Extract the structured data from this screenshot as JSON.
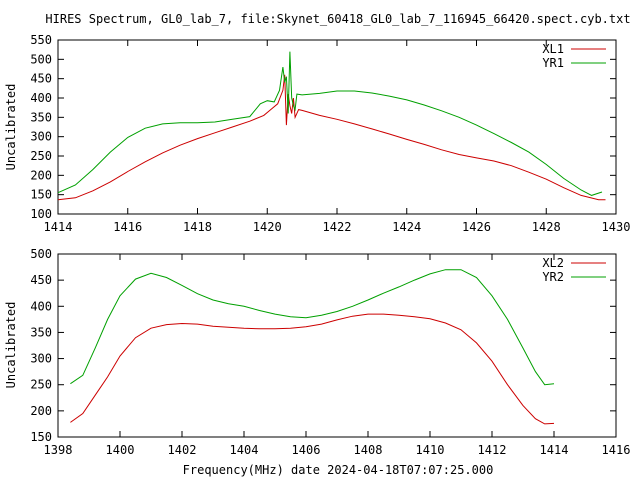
{
  "title": "HIRES Spectrum, GL0_lab_7, file:Skynet_60418_GL0_lab_7_116945_66420.spect.cyb.txt",
  "xlabel": "Frequency(MHz) date 2024-04-18T07:07:25.000",
  "colors": {
    "red": "#cc0000",
    "green": "#00a000"
  },
  "chart_data": [
    {
      "type": "line",
      "ylabel": "Uncalibrated",
      "xlim": [
        1414,
        1430
      ],
      "ylim": [
        100,
        550
      ],
      "xticks": [
        "1414",
        "1416",
        "1418",
        "1420",
        "1422",
        "1424",
        "1426",
        "1428",
        "1430"
      ],
      "yticks": [
        "100",
        "150",
        "200",
        "250",
        "300",
        "350",
        "400",
        "450",
        "500",
        "550"
      ],
      "legend": "top-right",
      "grid": false,
      "series": [
        {
          "name": "XL1",
          "color": "#cc0000",
          "points": [
            [
              1414.0,
              137
            ],
            [
              1414.5,
              142
            ],
            [
              1415.0,
              160
            ],
            [
              1415.5,
              183
            ],
            [
              1416.0,
              210
            ],
            [
              1416.5,
              235
            ],
            [
              1417.0,
              258
            ],
            [
              1417.5,
              278
            ],
            [
              1418.0,
              295
            ],
            [
              1418.5,
              310
            ],
            [
              1419.0,
              325
            ],
            [
              1419.5,
              340
            ],
            [
              1419.9,
              355
            ],
            [
              1420.1,
              370
            ],
            [
              1420.3,
              385
            ],
            [
              1420.45,
              420
            ],
            [
              1420.5,
              460
            ],
            [
              1420.55,
              330
            ],
            [
              1420.6,
              410
            ],
            [
              1420.65,
              380
            ],
            [
              1420.7,
              360
            ],
            [
              1420.75,
              400
            ],
            [
              1420.8,
              350
            ],
            [
              1420.9,
              370
            ],
            [
              1421.0,
              368
            ],
            [
              1421.5,
              355
            ],
            [
              1422.0,
              345
            ],
            [
              1422.5,
              333
            ],
            [
              1423.0,
              320
            ],
            [
              1423.5,
              307
            ],
            [
              1424.0,
              293
            ],
            [
              1424.5,
              280
            ],
            [
              1425.0,
              266
            ],
            [
              1425.5,
              254
            ],
            [
              1426.0,
              245
            ],
            [
              1426.5,
              237
            ],
            [
              1427.0,
              225
            ],
            [
              1427.5,
              208
            ],
            [
              1428.0,
              190
            ],
            [
              1428.5,
              168
            ],
            [
              1429.0,
              148
            ],
            [
              1429.5,
              137
            ],
            [
              1429.7,
              137
            ]
          ]
        },
        {
          "name": "YR1",
          "color": "#00a000",
          "points": [
            [
              1414.0,
              155
            ],
            [
              1414.5,
              175
            ],
            [
              1415.0,
              215
            ],
            [
              1415.5,
              260
            ],
            [
              1416.0,
              298
            ],
            [
              1416.5,
              322
            ],
            [
              1417.0,
              333
            ],
            [
              1417.5,
              336
            ],
            [
              1418.0,
              336
            ],
            [
              1418.5,
              338
            ],
            [
              1419.0,
              345
            ],
            [
              1419.5,
              352
            ],
            [
              1419.8,
              385
            ],
            [
              1420.0,
              393
            ],
            [
              1420.2,
              390
            ],
            [
              1420.35,
              420
            ],
            [
              1420.45,
              480
            ],
            [
              1420.5,
              440
            ],
            [
              1420.55,
              455
            ],
            [
              1420.6,
              360
            ],
            [
              1420.65,
              520
            ],
            [
              1420.7,
              400
            ],
            [
              1420.75,
              380
            ],
            [
              1420.8,
              370
            ],
            [
              1420.85,
              410
            ],
            [
              1421.0,
              408
            ],
            [
              1421.5,
              412
            ],
            [
              1422.0,
              418
            ],
            [
              1422.5,
              418
            ],
            [
              1423.0,
              413
            ],
            [
              1423.5,
              405
            ],
            [
              1424.0,
              395
            ],
            [
              1424.5,
              382
            ],
            [
              1425.0,
              367
            ],
            [
              1425.5,
              350
            ],
            [
              1426.0,
              330
            ],
            [
              1426.5,
              308
            ],
            [
              1427.0,
              285
            ],
            [
              1427.5,
              260
            ],
            [
              1428.0,
              228
            ],
            [
              1428.5,
              192
            ],
            [
              1429.0,
              162
            ],
            [
              1429.3,
              148
            ],
            [
              1429.6,
              157
            ]
          ]
        }
      ]
    },
    {
      "type": "line",
      "ylabel": "Uncalibrated",
      "xlim": [
        1398,
        1416
      ],
      "ylim": [
        150,
        500
      ],
      "xticks": [
        "1398",
        "1400",
        "1402",
        "1404",
        "1406",
        "1408",
        "1410",
        "1412",
        "1414",
        "1416"
      ],
      "yticks": [
        "150",
        "200",
        "250",
        "300",
        "350",
        "400",
        "450",
        "500"
      ],
      "legend": "top-right",
      "grid": false,
      "series": [
        {
          "name": "XL2",
          "color": "#cc0000",
          "points": [
            [
              1398.4,
              178
            ],
            [
              1398.8,
              195
            ],
            [
              1399.2,
              230
            ],
            [
              1399.6,
              265
            ],
            [
              1400.0,
              305
            ],
            [
              1400.5,
              340
            ],
            [
              1401.0,
              358
            ],
            [
              1401.5,
              365
            ],
            [
              1402.0,
              367
            ],
            [
              1402.5,
              366
            ],
            [
              1403.0,
              362
            ],
            [
              1403.5,
              360
            ],
            [
              1404.0,
              358
            ],
            [
              1404.5,
              357
            ],
            [
              1405.0,
              357
            ],
            [
              1405.5,
              358
            ],
            [
              1406.0,
              361
            ],
            [
              1406.5,
              366
            ],
            [
              1407.0,
              374
            ],
            [
              1407.5,
              381
            ],
            [
              1408.0,
              385
            ],
            [
              1408.5,
              385
            ],
            [
              1409.0,
              383
            ],
            [
              1409.5,
              380
            ],
            [
              1410.0,
              376
            ],
            [
              1410.5,
              368
            ],
            [
              1411.0,
              355
            ],
            [
              1411.5,
              330
            ],
            [
              1412.0,
              295
            ],
            [
              1412.5,
              250
            ],
            [
              1413.0,
              210
            ],
            [
              1413.4,
              185
            ],
            [
              1413.7,
              175
            ],
            [
              1414.0,
              176
            ]
          ]
        },
        {
          "name": "YR2",
          "color": "#00a000",
          "points": [
            [
              1398.4,
              252
            ],
            [
              1398.8,
              268
            ],
            [
              1399.2,
              320
            ],
            [
              1399.6,
              375
            ],
            [
              1400.0,
              420
            ],
            [
              1400.5,
              452
            ],
            [
              1401.0,
              463
            ],
            [
              1401.5,
              455
            ],
            [
              1402.0,
              440
            ],
            [
              1402.5,
              424
            ],
            [
              1403.0,
              412
            ],
            [
              1403.5,
              405
            ],
            [
              1404.0,
              400
            ],
            [
              1404.5,
              392
            ],
            [
              1405.0,
              385
            ],
            [
              1405.5,
              380
            ],
            [
              1406.0,
              378
            ],
            [
              1406.5,
              383
            ],
            [
              1407.0,
              390
            ],
            [
              1407.5,
              400
            ],
            [
              1408.0,
              412
            ],
            [
              1408.5,
              425
            ],
            [
              1409.0,
              437
            ],
            [
              1409.5,
              450
            ],
            [
              1410.0,
              462
            ],
            [
              1410.5,
              470
            ],
            [
              1411.0,
              470
            ],
            [
              1411.5,
              455
            ],
            [
              1412.0,
              420
            ],
            [
              1412.5,
              375
            ],
            [
              1413.0,
              320
            ],
            [
              1413.4,
              275
            ],
            [
              1413.7,
              250
            ],
            [
              1414.0,
              252
            ]
          ]
        }
      ]
    }
  ]
}
